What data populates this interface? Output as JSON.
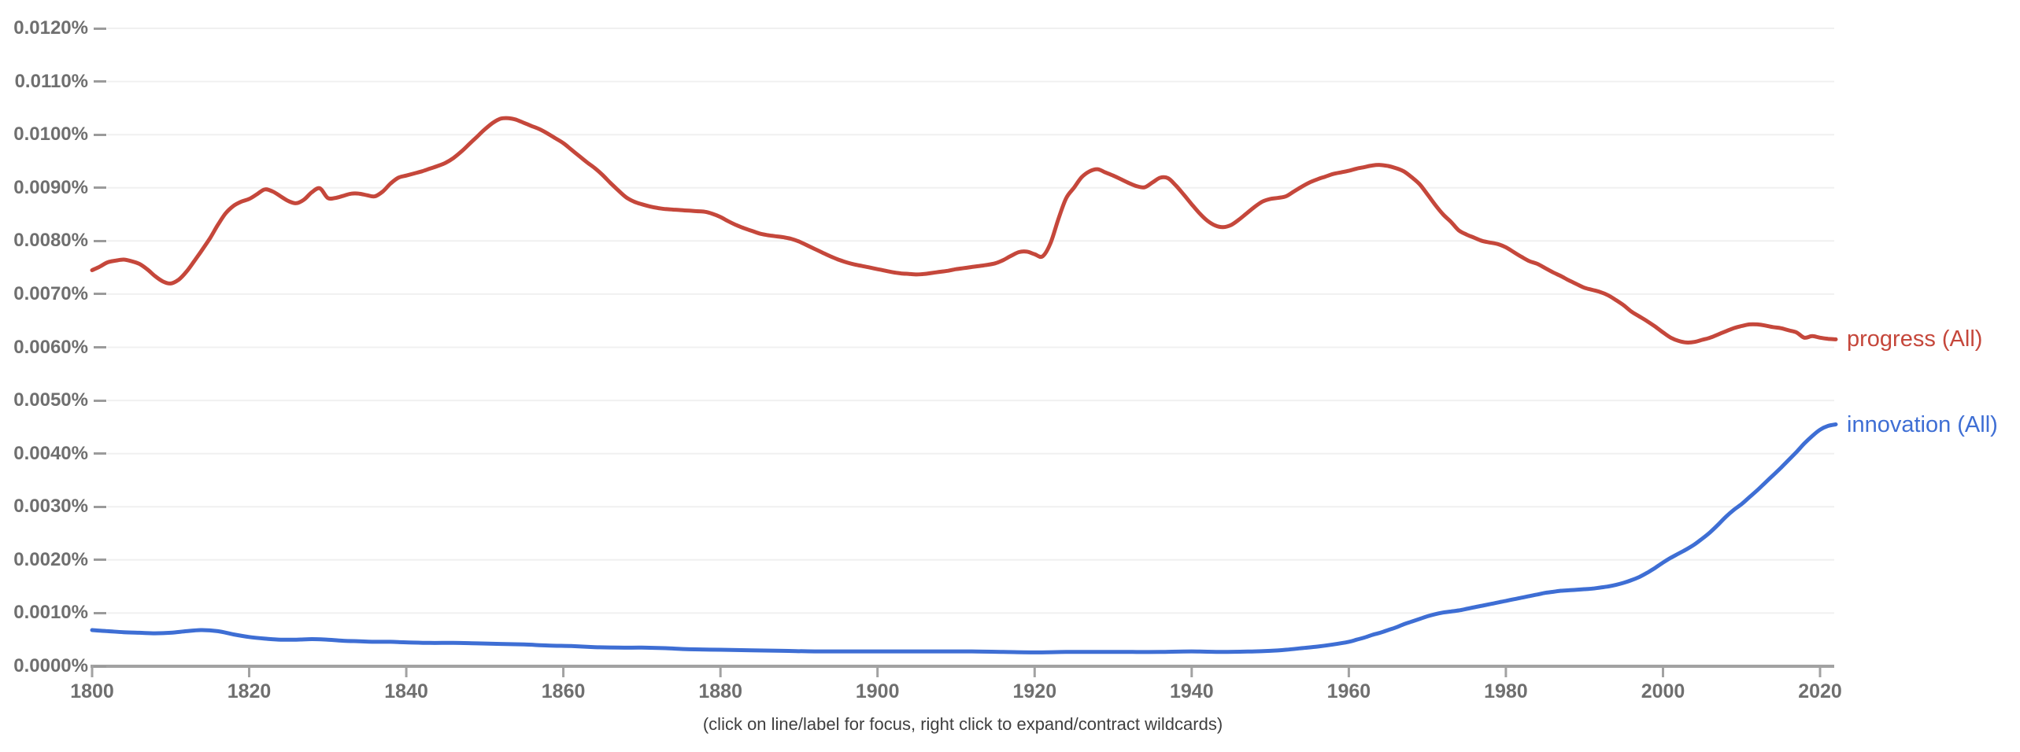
{
  "page": {
    "background": "#ffffff"
  },
  "footer": {
    "hint": "(click on line/label for focus, right click to expand/contract wildcards)"
  },
  "colors": {
    "gridline": "#f0f0f0",
    "axis_line": "#a2a2a2",
    "tick_mark": "#a2a2a2",
    "tick_label": "#6f6f6f",
    "footer_text": "#3f3f3f",
    "progress_red": "#c5473b",
    "innovation_blue": "#3e6ed4"
  },
  "chart_data": {
    "type": "line",
    "title": "",
    "xlabel": "",
    "ylabel": "",
    "grid": true,
    "legend_position": "right-of-line-ends",
    "xlim": [
      1800,
      2022
    ],
    "ylim": [
      0,
      0.012
    ],
    "x_ticks": [
      1800,
      1820,
      1840,
      1860,
      1880,
      1900,
      1920,
      1940,
      1960,
      1980,
      2000,
      2020
    ],
    "x_tick_labels": [
      "1800",
      "1820",
      "1840",
      "1860",
      "1880",
      "1900",
      "1920",
      "1940",
      "1960",
      "1980",
      "2000",
      "2020"
    ],
    "y_ticks": [
      0,
      0.001,
      0.002,
      0.003,
      0.004,
      0.005,
      0.006,
      0.007,
      0.008,
      0.009,
      0.01,
      0.011,
      0.012
    ],
    "y_tick_labels": [
      "0.0000%",
      "0.0010%",
      "0.0020%",
      "0.0030%",
      "0.0040%",
      "0.0050%",
      "0.0060%",
      "0.0070%",
      "0.0080%",
      "0.0090%",
      "0.0100%",
      "0.0110%",
      "0.0120%"
    ],
    "series": [
      {
        "name": "progress (All)",
        "color": "#c5473b",
        "x_start": 1800,
        "x_step": 1,
        "values": [
          0.00745,
          0.00752,
          0.0076,
          0.00763,
          0.00765,
          0.00762,
          0.00757,
          0.00747,
          0.00734,
          0.00724,
          0.0072,
          0.00727,
          0.00742,
          0.00762,
          0.00783,
          0.00805,
          0.0083,
          0.00852,
          0.00866,
          0.00874,
          0.00879,
          0.00888,
          0.00897,
          0.00893,
          0.00884,
          0.00875,
          0.00871,
          0.00878,
          0.00892,
          0.00899,
          0.00881,
          0.00881,
          0.00885,
          0.00889,
          0.00889,
          0.00886,
          0.00884,
          0.00893,
          0.00908,
          0.00919,
          0.00923,
          0.00927,
          0.00931,
          0.00936,
          0.00941,
          0.00947,
          0.00956,
          0.00968,
          0.00982,
          0.00996,
          0.0101,
          0.01022,
          0.0103,
          0.01031,
          0.01028,
          0.01022,
          0.01016,
          0.0101,
          0.01002,
          0.00993,
          0.00984,
          0.00972,
          0.0096,
          0.00948,
          0.00937,
          0.00924,
          0.00909,
          0.00895,
          0.00882,
          0.00874,
          0.00869,
          0.00865,
          0.00862,
          0.0086,
          0.00859,
          0.00858,
          0.00857,
          0.00856,
          0.00855,
          0.00851,
          0.00845,
          0.00837,
          0.0083,
          0.00824,
          0.00819,
          0.00814,
          0.00811,
          0.00809,
          0.00807,
          0.00804,
          0.00799,
          0.00792,
          0.00785,
          0.00778,
          0.00771,
          0.00765,
          0.0076,
          0.00756,
          0.00753,
          0.0075,
          0.00747,
          0.00744,
          0.00741,
          0.00739,
          0.00738,
          0.00737,
          0.00738,
          0.0074,
          0.00742,
          0.00744,
          0.00747,
          0.00749,
          0.00751,
          0.00753,
          0.00755,
          0.00758,
          0.00764,
          0.00772,
          0.00779,
          0.0078,
          0.00775,
          0.00771,
          0.00795,
          0.0084,
          0.0088,
          0.009,
          0.0092,
          0.00931,
          0.00935,
          0.00929,
          0.00923,
          0.00916,
          0.00909,
          0.00903,
          0.00901,
          0.0091,
          0.00919,
          0.00918,
          0.00904,
          0.00887,
          0.00869,
          0.00852,
          0.00838,
          0.00829,
          0.00826,
          0.0083,
          0.0084,
          0.00852,
          0.00864,
          0.00874,
          0.00879,
          0.00881,
          0.00884,
          0.00893,
          0.00902,
          0.0091,
          0.00916,
          0.00921,
          0.00926,
          0.00929,
          0.00932,
          0.00936,
          0.00939,
          0.00942,
          0.00943,
          0.00941,
          0.00937,
          0.00931,
          0.0092,
          0.00907,
          0.00888,
          0.00868,
          0.0085,
          0.00836,
          0.0082,
          0.00812,
          0.00806,
          0.008,
          0.00797,
          0.00794,
          0.00788,
          0.00779,
          0.0077,
          0.00762,
          0.00757,
          0.00749,
          0.00741,
          0.00734,
          0.00726,
          0.00719,
          0.00712,
          0.00708,
          0.00704,
          0.00698,
          0.00689,
          0.00679,
          0.00667,
          0.00658,
          0.00649,
          0.00639,
          0.00628,
          0.00618,
          0.00612,
          0.00609,
          0.0061,
          0.00614,
          0.00618,
          0.00624,
          0.0063,
          0.00636,
          0.0064,
          0.00643,
          0.00643,
          0.00641,
          0.00638,
          0.00636,
          0.00632,
          0.00628,
          0.00618,
          0.00621,
          0.00618,
          0.00616,
          0.00615
        ]
      },
      {
        "name": "innovation (All)",
        "color": "#3e6ed4",
        "x": [
          1800,
          1802,
          1804,
          1806,
          1808,
          1810,
          1812,
          1814,
          1816,
          1818,
          1820,
          1822,
          1824,
          1826,
          1828,
          1830,
          1832,
          1834,
          1836,
          1838,
          1840,
          1843,
          1846,
          1849,
          1852,
          1855,
          1858,
          1861,
          1864,
          1867,
          1870,
          1873,
          1876,
          1880,
          1884,
          1888,
          1892,
          1896,
          1900,
          1904,
          1908,
          1912,
          1916,
          1920,
          1924,
          1928,
          1932,
          1936,
          1940,
          1944,
          1948,
          1950,
          1952,
          1954,
          1956,
          1958,
          1960,
          1961,
          1962,
          1963,
          1964,
          1965,
          1966,
          1967,
          1968,
          1969,
          1970,
          1971,
          1972,
          1973,
          1974,
          1975,
          1976,
          1977,
          1978,
          1979,
          1980,
          1981,
          1982,
          1983,
          1984,
          1985,
          1986,
          1987,
          1988,
          1989,
          1990,
          1991,
          1992,
          1993,
          1994,
          1995,
          1996,
          1997,
          1998,
          1999,
          2000,
          2001,
          2002,
          2003,
          2004,
          2005,
          2006,
          2007,
          2008,
          2009,
          2010,
          2011,
          2012,
          2013,
          2014,
          2015,
          2016,
          2017,
          2018,
          2019,
          2020,
          2021,
          2022
        ],
        "values": [
          0.00068,
          0.00066,
          0.00064,
          0.00063,
          0.00062,
          0.00063,
          0.00066,
          0.00068,
          0.00066,
          0.0006,
          0.00055,
          0.00052,
          0.0005,
          0.0005,
          0.00051,
          0.0005,
          0.00048,
          0.00047,
          0.00046,
          0.00046,
          0.00045,
          0.00044,
          0.00044,
          0.00043,
          0.00042,
          0.00041,
          0.00039,
          0.00038,
          0.00036,
          0.00035,
          0.00035,
          0.00034,
          0.00032,
          0.00031,
          0.0003,
          0.00029,
          0.00028,
          0.00028,
          0.00028,
          0.00028,
          0.00028,
          0.00028,
          0.00027,
          0.00026,
          0.00027,
          0.00027,
          0.00027,
          0.00027,
          0.00028,
          0.00027,
          0.00028,
          0.00029,
          0.00031,
          0.00034,
          0.00037,
          0.00041,
          0.00046,
          0.0005,
          0.00054,
          0.00059,
          0.00063,
          0.00068,
          0.00073,
          0.00079,
          0.00084,
          0.00089,
          0.00094,
          0.00098,
          0.00101,
          0.00103,
          0.00105,
          0.00108,
          0.00111,
          0.00114,
          0.00117,
          0.0012,
          0.00123,
          0.00126,
          0.00129,
          0.00132,
          0.00135,
          0.00138,
          0.0014,
          0.00142,
          0.00143,
          0.00144,
          0.00145,
          0.00146,
          0.00148,
          0.0015,
          0.00153,
          0.00157,
          0.00162,
          0.00168,
          0.00176,
          0.00185,
          0.00195,
          0.00204,
          0.00212,
          0.0022,
          0.00229,
          0.0024,
          0.00252,
          0.00266,
          0.00281,
          0.00294,
          0.00305,
          0.00318,
          0.00331,
          0.00345,
          0.00359,
          0.00373,
          0.00388,
          0.00403,
          0.00419,
          0.00433,
          0.00445,
          0.00452,
          0.00455
        ]
      }
    ]
  }
}
